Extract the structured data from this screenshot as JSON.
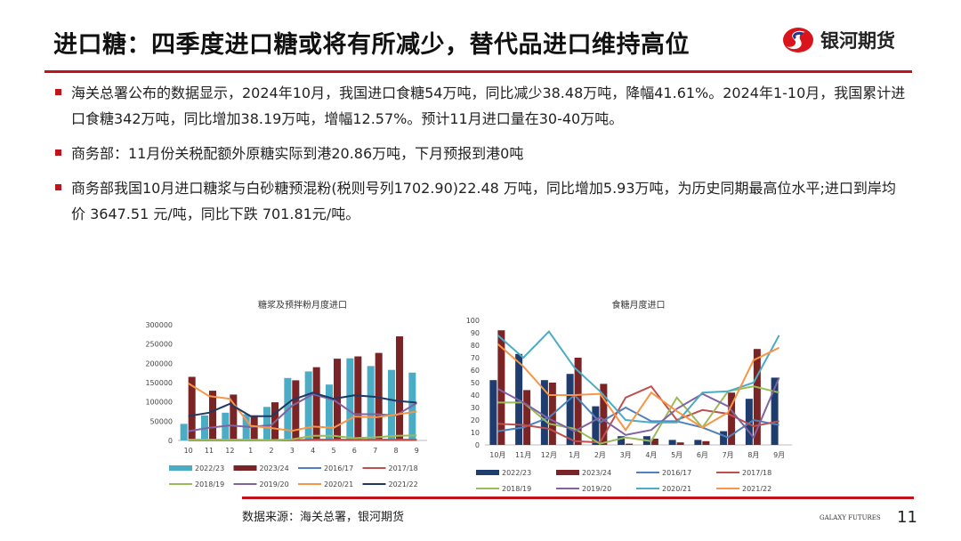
{
  "header": {
    "title": "进口糖：四季度进口糖或将有所减少，替代品进口维持高位",
    "logo_text": "银河期货"
  },
  "bullets": [
    "海关总署公布的数据显示，2024年10月，我国进口食糖54万吨，同比减少38.48万吨，降幅41.61%。2024年1-10月，我国累计进口食糖342万吨，同比增加38.19万吨，增幅12.57%。预计11月进口量在30-40万吨。",
    "商务部：11月份关税配额外原糖实际到港20.86万吨，下月预报到港0吨",
    "商务部我国10月进口糖浆与白砂糖预混粉(税则号列1702.90)22.48 万吨，同比增加5.93万吨，为历史同期最高位水平;进口到岸均价 3647.51 元/吨，同比下跌 701.81元/吨。"
  ],
  "footer": {
    "source": "数据来源：海关总署，银河期货",
    "brand": "GALAXY FUTURES",
    "page": "11"
  },
  "colors": {
    "accent": "#c0141b"
  },
  "chart_data": [
    {
      "type": "bar",
      "title": "糖浆及预拌粉月度进口",
      "categories": [
        "10",
        "11",
        "12",
        "1",
        "2",
        "3",
        "4",
        "5",
        "6",
        "7",
        "8",
        "9"
      ],
      "ylim": [
        0,
        300000
      ],
      "yticks": [
        "0",
        "50000",
        "100000",
        "150000",
        "200000",
        "250000",
        "300000"
      ],
      "series": [
        {
          "name": "2022/23",
          "kind": "bar",
          "color": "#4bacc6",
          "values": [
            43000,
            65000,
            72000,
            68000,
            87000,
            162000,
            179000,
            145000,
            213000,
            193000,
            183000,
            176000
          ]
        },
        {
          "name": "2023/24",
          "kind": "bar",
          "color": "#7b2425",
          "values": [
            165000,
            129000,
            119000,
            65000,
            99000,
            156000,
            190000,
            212000,
            218000,
            227000,
            270000,
            null
          ]
        },
        {
          "name": "2016/17",
          "kind": "line",
          "color": "#4f81bd",
          "values": [
            1000,
            1000,
            1000,
            1000,
            500,
            1000,
            2000,
            2000,
            2000,
            2000,
            2000,
            2000
          ]
        },
        {
          "name": "2017/18",
          "kind": "line",
          "color": "#c0504d",
          "values": [
            500,
            500,
            500,
            500,
            500,
            500,
            1000,
            1000,
            1000,
            1000,
            1000,
            1000
          ]
        },
        {
          "name": "2018/19",
          "kind": "line",
          "color": "#9bbb59",
          "values": [
            2000,
            2000,
            2000,
            2000,
            1000,
            3000,
            12000,
            12000,
            6000,
            8000,
            12000,
            13000
          ]
        },
        {
          "name": "2019/20",
          "kind": "line",
          "color": "#8064a2",
          "values": [
            24000,
            33000,
            39000,
            35000,
            40000,
            90000,
            120000,
            105000,
            68000,
            68000,
            65000,
            97000
          ]
        },
        {
          "name": "2020/21",
          "kind": "line",
          "color": "#f79646",
          "values": [
            148000,
            115000,
            108000,
            38000,
            32000,
            25000,
            36000,
            33000,
            62000,
            60000,
            67000,
            75000
          ]
        },
        {
          "name": "2021/22",
          "kind": "line",
          "color": "#1f3864",
          "values": [
            63000,
            72000,
            95000,
            63000,
            63000,
            105000,
            124000,
            108000,
            117000,
            113000,
            103000,
            98000
          ]
        }
      ]
    },
    {
      "type": "bar",
      "title": "食糖月度进口",
      "categories": [
        "10月",
        "11月",
        "12月",
        "1月",
        "2月",
        "3月",
        "4月",
        "5月",
        "6月",
        "7月",
        "8月",
        "9月"
      ],
      "ylim": [
        0,
        100
      ],
      "yticks": [
        "0",
        "10",
        "20",
        "30",
        "40",
        "50",
        "60",
        "70",
        "80",
        "90",
        "100"
      ],
      "series": [
        {
          "name": "2022/23",
          "kind": "bar",
          "color": "#1f3c6e",
          "values": [
            52,
            73,
            52,
            57,
            31,
            7,
            7,
            4,
            4,
            11,
            37,
            54
          ]
        },
        {
          "name": "2023/24",
          "kind": "bar",
          "color": "#7b2425",
          "values": [
            92,
            44,
            50,
            70,
            49,
            1,
            5,
            2,
            3,
            42,
            77,
            null
          ]
        },
        {
          "name": "2016/17",
          "kind": "line",
          "color": "#4f81bd",
          "values": [
            11,
            14,
            22,
            40,
            18,
            30,
            19,
            19,
            14,
            6,
            20,
            16
          ]
        },
        {
          "name": "2017/18",
          "kind": "line",
          "color": "#c0504d",
          "values": [
            17,
            16,
            13,
            3,
            2,
            38,
            47,
            20,
            28,
            25,
            15,
            19
          ]
        },
        {
          "name": "2018/19",
          "kind": "line",
          "color": "#9bbb59",
          "values": [
            34,
            34,
            17,
            13,
            1,
            6,
            3,
            38,
            14,
            43,
            47,
            42
          ]
        },
        {
          "name": "2019/20",
          "kind": "line",
          "color": "#8064a2",
          "values": [
            45,
            34,
            21,
            11,
            22,
            8,
            12,
            29,
            41,
            31,
            6,
            54
          ]
        },
        {
          "name": "2020/21",
          "kind": "line",
          "color": "#4bacc6",
          "values": [
            88,
            70,
            91,
            62,
            43,
            20,
            18,
            18,
            42,
            43,
            50,
            88
          ]
        },
        {
          "name": "2021/22",
          "kind": "line",
          "color": "#f79646",
          "values": [
            81,
            63,
            40,
            40,
            41,
            12,
            42,
            27,
            14,
            26,
            68,
            78
          ]
        }
      ]
    }
  ]
}
